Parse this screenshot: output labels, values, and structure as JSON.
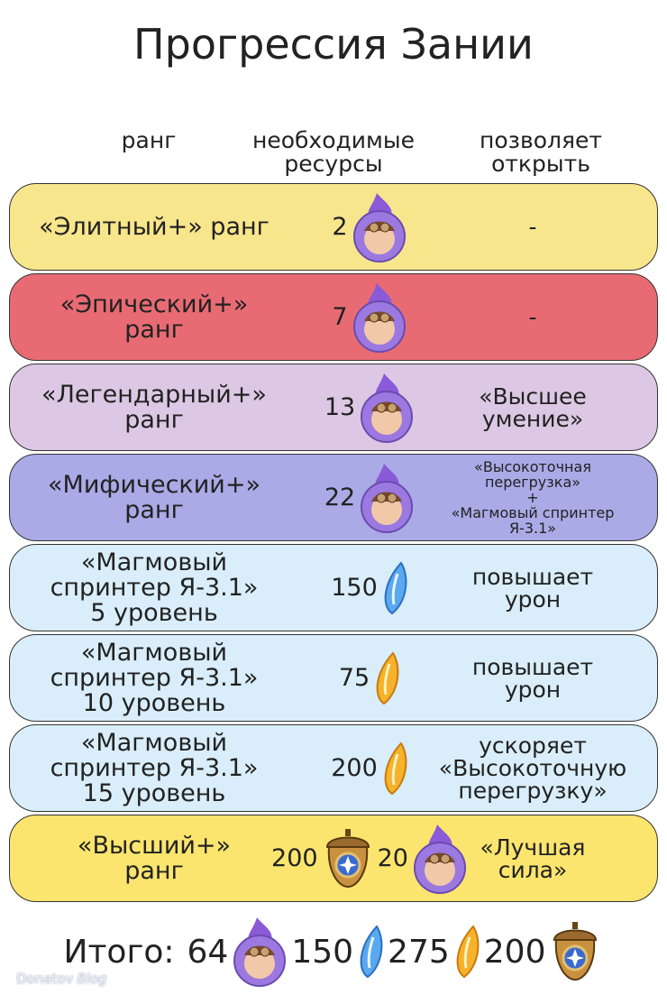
{
  "title": "Прогрессия Зании",
  "headers": [
    [
      "ранг"
    ],
    [
      "необходимые",
      "ресурсы"
    ],
    [
      "позволяет",
      "открыть"
    ]
  ],
  "rows": [
    {
      "rank": [
        "«Элитный+» ранг"
      ],
      "resources": [
        2
      ],
      "unlocks": [
        "-"
      ],
      "color": "#f8e68c"
    },
    {
      "rank": [
        "«Эпический+»",
        "ранг"
      ],
      "resources": [
        7
      ],
      "unlocks": [
        "-"
      ],
      "color": "#e86b74"
    },
    {
      "rank": [
        "«Легендарный+»",
        "ранг"
      ],
      "resources": [
        13
      ],
      "unlocks": [
        "«Высшее",
        "умение»"
      ],
      "color": "#dcc8e4"
    },
    {
      "rank": [
        "«Мифический+»",
        "ранг"
      ],
      "resources": [
        22
      ],
      "unlocks": [
        "«Высокоточная",
        "перегрузка»",
        "+",
        "«Магмовый спринтер",
        "Я-3.1»"
      ],
      "color": "#a9aae6"
    },
    {
      "rank": [
        "«Магмовый",
        "спринтер Я-3.1»",
        "5 уровень"
      ],
      "resources": [
        150
      ],
      "unlocks": [
        "повышает",
        "урон"
      ],
      "color": "#d9eefa"
    },
    {
      "rank": [
        "«Магмовый",
        "спринтер Я-3.1»",
        "10 уровень"
      ],
      "resources": [
        75
      ],
      "unlocks": [
        "повышает",
        "урон"
      ],
      "color": "#d9eefa"
    },
    {
      "rank": [
        "«Магмовый",
        "спринтер Я-3.1»",
        "15 уровень"
      ],
      "resources": [
        200
      ],
      "unlocks": [
        "ускоряет",
        "«Высокоточную",
        "перегрузку»"
      ],
      "color": "#d9eefa"
    },
    {
      "rank": [
        "«Высший+»",
        "ранг"
      ],
      "resources": [
        200,
        20
      ],
      "unlocks": [
        "«Лучшая",
        "сила»"
      ],
      "color": "#fbe56e"
    }
  ],
  "total": {
    "label": "Итого:",
    "amounts": [
      64,
      150,
      275,
      200
    ]
  },
  "watermark": [
    "Donatov",
    "Blog"
  ]
}
